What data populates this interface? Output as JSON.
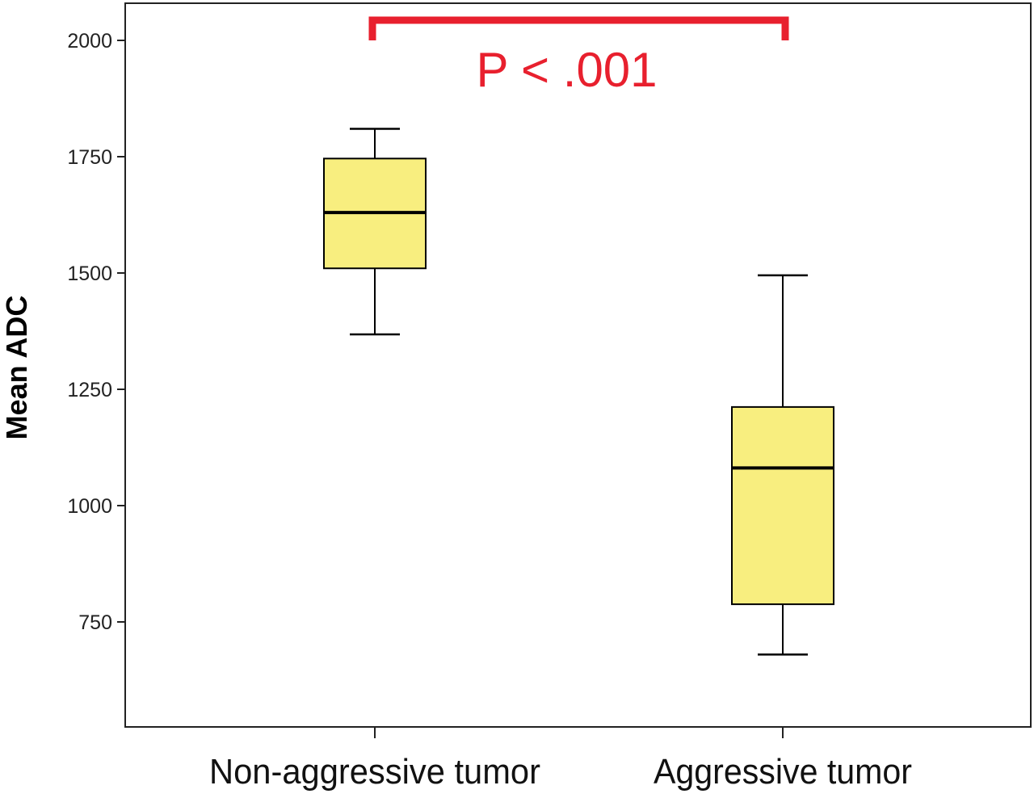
{
  "chart_data": {
    "type": "boxplot",
    "ylabel": "Mean ADC",
    "xlabel": "",
    "ylim": [
      580,
      2065
    ],
    "yticks": [
      750,
      1000,
      1250,
      1500,
      1750,
      2000
    ],
    "ytick_labels": [
      "750",
      "1000",
      "1250",
      "1500",
      "1750",
      "2000"
    ],
    "categories": [
      "Non-aggressive tumor",
      "Aggressive tumor"
    ],
    "boxes": [
      {
        "category": "Non-aggressive tumor",
        "whisker_low": 1368,
        "q1": 1510,
        "median": 1630,
        "q3": 1746,
        "whisker_high": 1810
      },
      {
        "category": "Aggressive tumor",
        "whisker_low": 680,
        "q1": 788,
        "median": 1081,
        "q3": 1212,
        "whisker_high": 1495
      }
    ],
    "significance": {
      "label": "P < .001",
      "between": [
        "Non-aggressive tumor",
        "Aggressive tumor"
      ]
    },
    "colors": {
      "box_fill": "#F8EE7F",
      "significance": "#E8202E",
      "axis": "#222222"
    },
    "grid": false,
    "legend": "none"
  }
}
